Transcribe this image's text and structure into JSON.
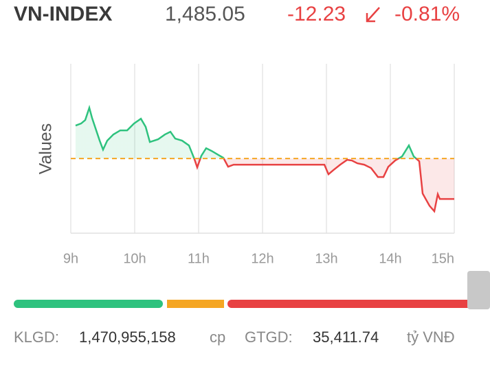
{
  "header": {
    "name": "VN-INDEX",
    "price": "1,485.05",
    "change": "-12.23",
    "change_pct": "-0.81%"
  },
  "chart_data": {
    "type": "line",
    "y_label": "Values",
    "x": [
      9.075,
      9.161,
      9.226,
      9.29,
      9.333,
      9.398,
      9.452,
      9.505,
      9.57,
      9.667,
      9.774,
      9.882,
      9.989,
      10.097,
      10.172,
      10.237,
      10.366,
      10.473,
      10.559,
      10.634,
      10.742,
      10.849,
      10.935,
      10.978,
      11.043,
      11.118,
      11.204,
      11.312,
      11.387,
      11.462,
      11.548,
      12.968,
      13.032,
      13.108,
      13.215,
      13.323,
      13.398,
      13.484,
      13.591,
      13.699,
      13.806,
      13.892,
      13.968,
      14.075,
      14.183,
      14.29,
      14.366,
      14.452,
      14.505,
      14.613,
      14.688,
      14.742,
      14.774,
      15.0
    ],
    "series": [
      {
        "name": "VN-INDEX",
        "color_up": "#2ec27e",
        "color_down": "#e84142",
        "values": [
          1507.23,
          1507.85,
          1508.89,
          1512.62,
          1509.51,
          1505.78,
          1502.67,
          1499.97,
          1502.67,
          1504.54,
          1505.78,
          1505.78,
          1507.85,
          1509.3,
          1506.82,
          1502.26,
          1503.08,
          1504.54,
          1505.36,
          1503.29,
          1502.67,
          1501.22,
          1497.07,
          1494.59,
          1498.11,
          1500.39,
          1499.56,
          1498.32,
          1497.49,
          1494.79,
          1495.41,
          1495.41,
          1492.51,
          1493.76,
          1495.41,
          1496.87,
          1496.66,
          1495.83,
          1495.41,
          1494.38,
          1491.68,
          1491.68,
          1494.79,
          1496.66,
          1497.9,
          1501.22,
          1497.9,
          1496.45,
          1486.71,
          1482.98,
          1481.32,
          1486.5,
          1485.05,
          1485.05
        ]
      }
    ],
    "reference_line": 1497.28,
    "reference_color": "#f5a623",
    "xlim": [
      9,
      15
    ],
    "ylim": [
      1474.7,
      1525.9
    ],
    "xticks": [
      {
        "value": 9,
        "label": "9h"
      },
      {
        "value": 10,
        "label": "10h"
      },
      {
        "value": 11,
        "label": "11h"
      },
      {
        "value": 12,
        "label": "12h"
      },
      {
        "value": 13,
        "label": "13h"
      },
      {
        "value": 14,
        "label": "14h"
      },
      {
        "value": 15,
        "label": "15h"
      }
    ],
    "grid": true
  },
  "footer": {
    "volume_label": "KLGD:",
    "volume": "1,470,955,158",
    "volume_unit": "cp",
    "value_label": "GTGD:",
    "value": "35,411.74",
    "value_unit": "tỷ VNĐ"
  }
}
